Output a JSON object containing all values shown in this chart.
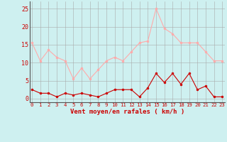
{
  "hours": [
    0,
    1,
    2,
    3,
    4,
    5,
    6,
    7,
    8,
    9,
    10,
    11,
    12,
    13,
    14,
    15,
    16,
    17,
    18,
    19,
    20,
    21,
    22,
    23
  ],
  "wind_avg": [
    2.5,
    1.5,
    1.5,
    0.5,
    1.5,
    1.0,
    1.5,
    1.0,
    0.5,
    1.5,
    2.5,
    2.5,
    2.5,
    0.5,
    3.0,
    7.0,
    4.5,
    7.0,
    4.0,
    7.0,
    2.5,
    3.5,
    0.5,
    0.5
  ],
  "wind_gust": [
    15.5,
    10.5,
    13.5,
    11.5,
    10.5,
    5.5,
    8.5,
    5.5,
    8.0,
    10.5,
    11.5,
    10.5,
    13.0,
    15.5,
    16.0,
    25.0,
    19.5,
    18.0,
    15.5,
    15.5,
    15.5,
    13.0,
    10.5,
    10.5
  ],
  "avg_color": "#cc0000",
  "gust_color": "#ffaaaa",
  "bg_color": "#cef0f0",
  "grid_color": "#aaaaaa",
  "xlabel": "Vent moyen/en rafales ( km/h )",
  "xlabel_color": "#cc0000",
  "tick_color": "#cc0000",
  "ylim": [
    -1,
    27
  ],
  "yticks": [
    0,
    5,
    10,
    15,
    20,
    25
  ],
  "xlim": [
    -0.3,
    23.3
  ]
}
